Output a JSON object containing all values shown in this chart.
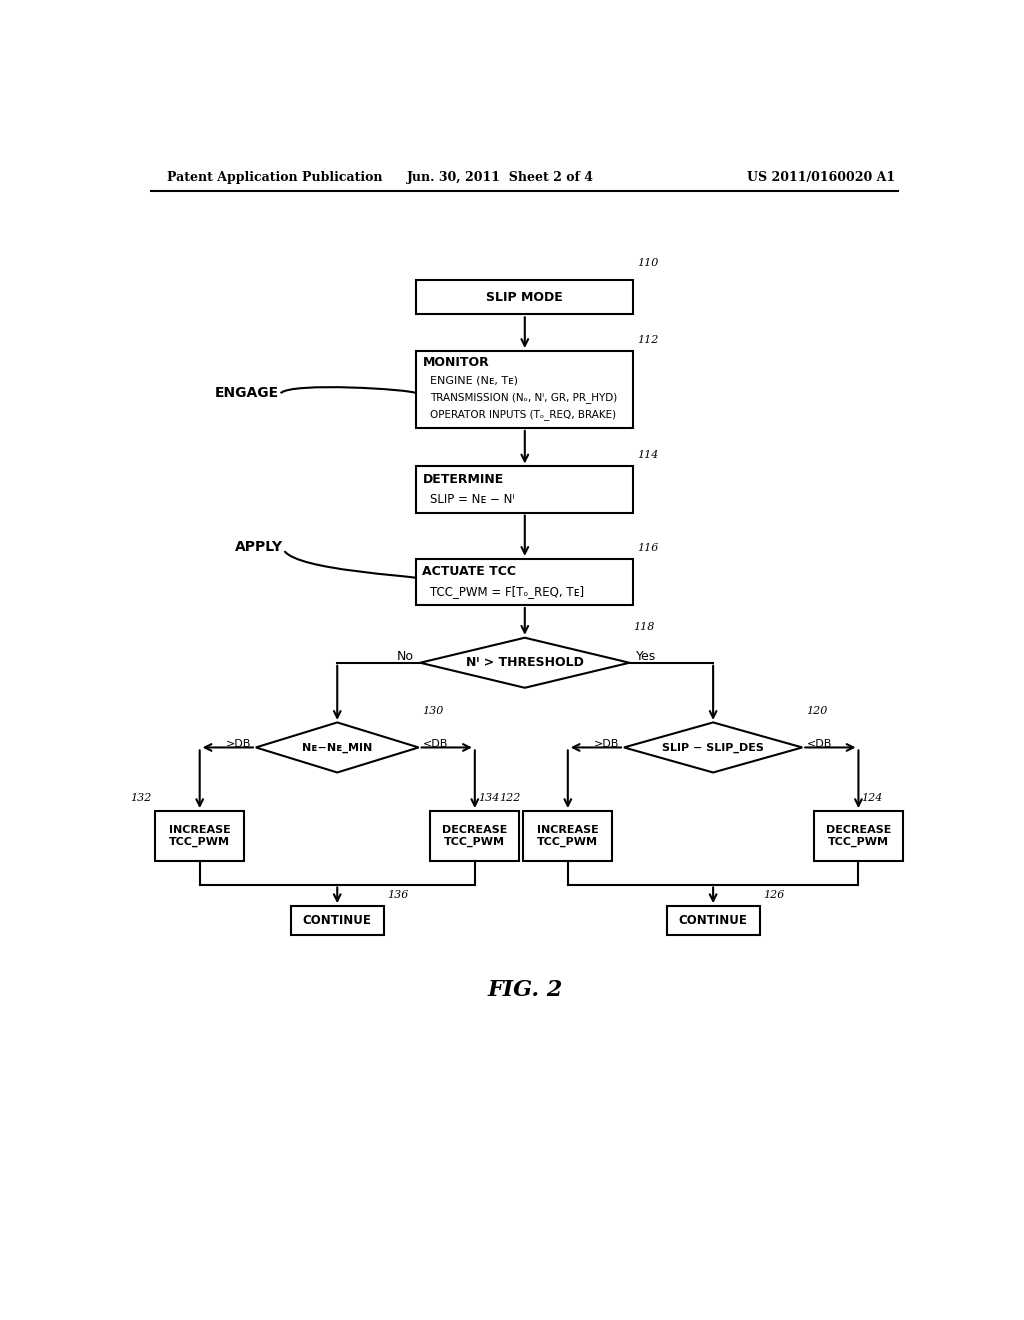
{
  "header_left": "Patent Application Publication",
  "header_mid": "Jun. 30, 2011  Sheet 2 of 4",
  "header_right": "US 2011/0160020 A1",
  "fig_label": "FIG. 2",
  "background_color": "#ffffff",
  "line_color": "#000000"
}
